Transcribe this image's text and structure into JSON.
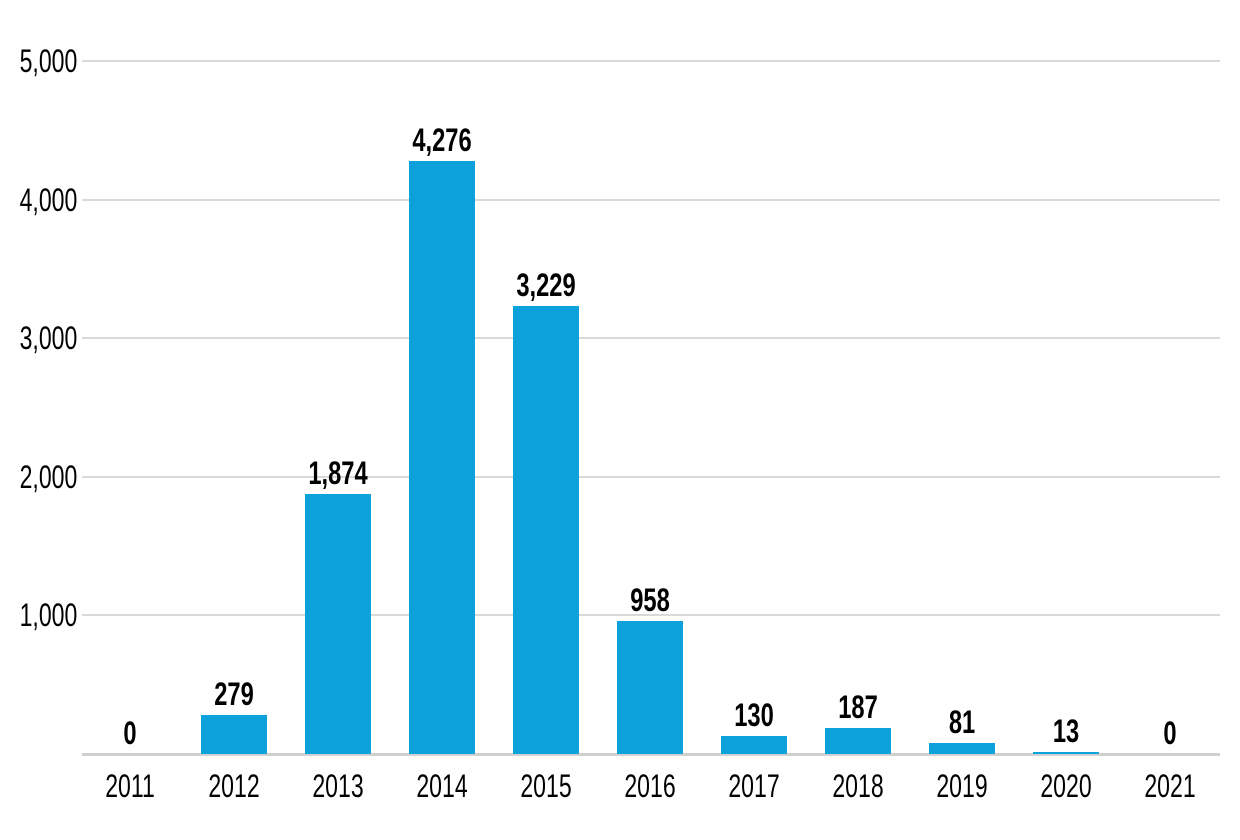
{
  "chart_data": {
    "type": "bar",
    "title": "",
    "xlabel": "",
    "ylabel": "",
    "categories": [
      "2011",
      "2012",
      "2013",
      "2014",
      "2015",
      "2016",
      "2017",
      "2018",
      "2019",
      "2020",
      "2021"
    ],
    "values": [
      0,
      279,
      1874,
      4276,
      3229,
      958,
      130,
      187,
      81,
      13,
      0
    ],
    "value_labels": [
      "0",
      "279",
      "1,874",
      "4,276",
      "3,229",
      "958",
      "130",
      "187",
      "81",
      "13",
      "0"
    ],
    "ylim": [
      0,
      5000
    ],
    "yticks": [
      1000,
      2000,
      3000,
      4000,
      5000
    ],
    "ytick_labels": [
      "1,000",
      "2,000",
      "3,000",
      "4,000",
      "5,000"
    ],
    "grid": "horizontal",
    "legend": "none",
    "bar_color": "#0da1dc",
    "gridline_color": "#d9d9d9",
    "axis_line_color": "#d0d0d0",
    "label_color": "#000000",
    "background_color": "#ffffff"
  }
}
